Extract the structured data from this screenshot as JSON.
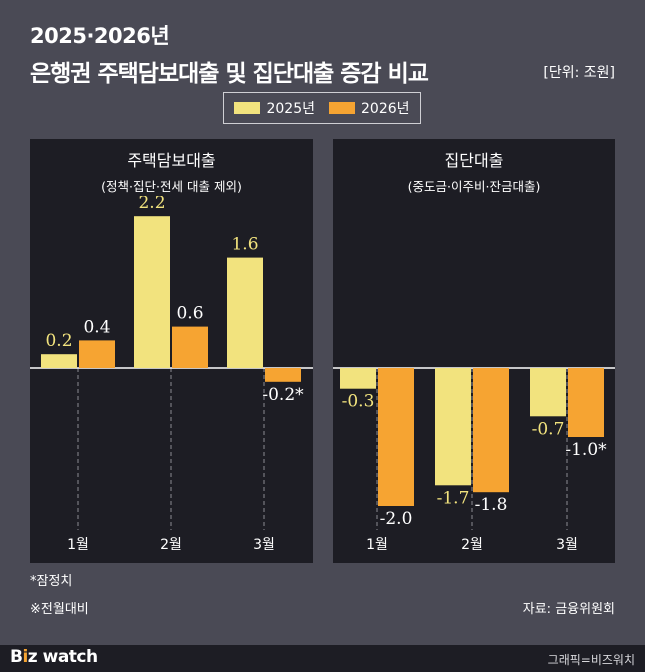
{
  "title": {
    "line1": "2025·2026년",
    "line2": "은행권 주택담보대출 및 집단대출 증감 비교",
    "unit": "[단위: 조원]"
  },
  "legend": [
    "2025년",
    "2026년"
  ],
  "colors": {
    "y2025": "#f2e37e",
    "y2026": "#f6a432",
    "background": "#4a4a55",
    "panel": "#1d1d24"
  },
  "chart_data": [
    {
      "type": "bar",
      "title": "주택담보대출",
      "subtitle": "(정책·집단·전세 대출 제외)",
      "categories": [
        "1월",
        "2월",
        "3월"
      ],
      "series": [
        {
          "name": "2025년",
          "values": [
            0.2,
            2.2,
            1.6
          ],
          "labels": [
            "0.2",
            "2.2",
            "1.6"
          ]
        },
        {
          "name": "2026년",
          "values": [
            0.4,
            0.6,
            -0.2
          ],
          "labels": [
            "0.4",
            "0.6",
            "-0.2*"
          ]
        }
      ]
    },
    {
      "type": "bar",
      "title": "집단대출",
      "subtitle": "(중도금·이주비·잔금대출)",
      "categories": [
        "1월",
        "2월",
        "3월"
      ],
      "series": [
        {
          "name": "2025년",
          "values": [
            -0.3,
            -1.7,
            -0.7
          ],
          "labels": [
            "-0.3",
            "-1.7",
            "-0.7"
          ]
        },
        {
          "name": "2026년",
          "values": [
            -2.0,
            -1.8,
            -1.0
          ],
          "labels": [
            "-2.0",
            "-1.8",
            "-1.0*"
          ]
        }
      ]
    }
  ],
  "notes": {
    "provisional": "*잠정치",
    "mom": "※전월대비",
    "source": "자료: 금융위원회"
  },
  "footer": {
    "logo_b": "B",
    "logo_i": "i",
    "logo_z": "z",
    "logo_rest": " watch",
    "credit": "그래픽=비즈워치"
  }
}
